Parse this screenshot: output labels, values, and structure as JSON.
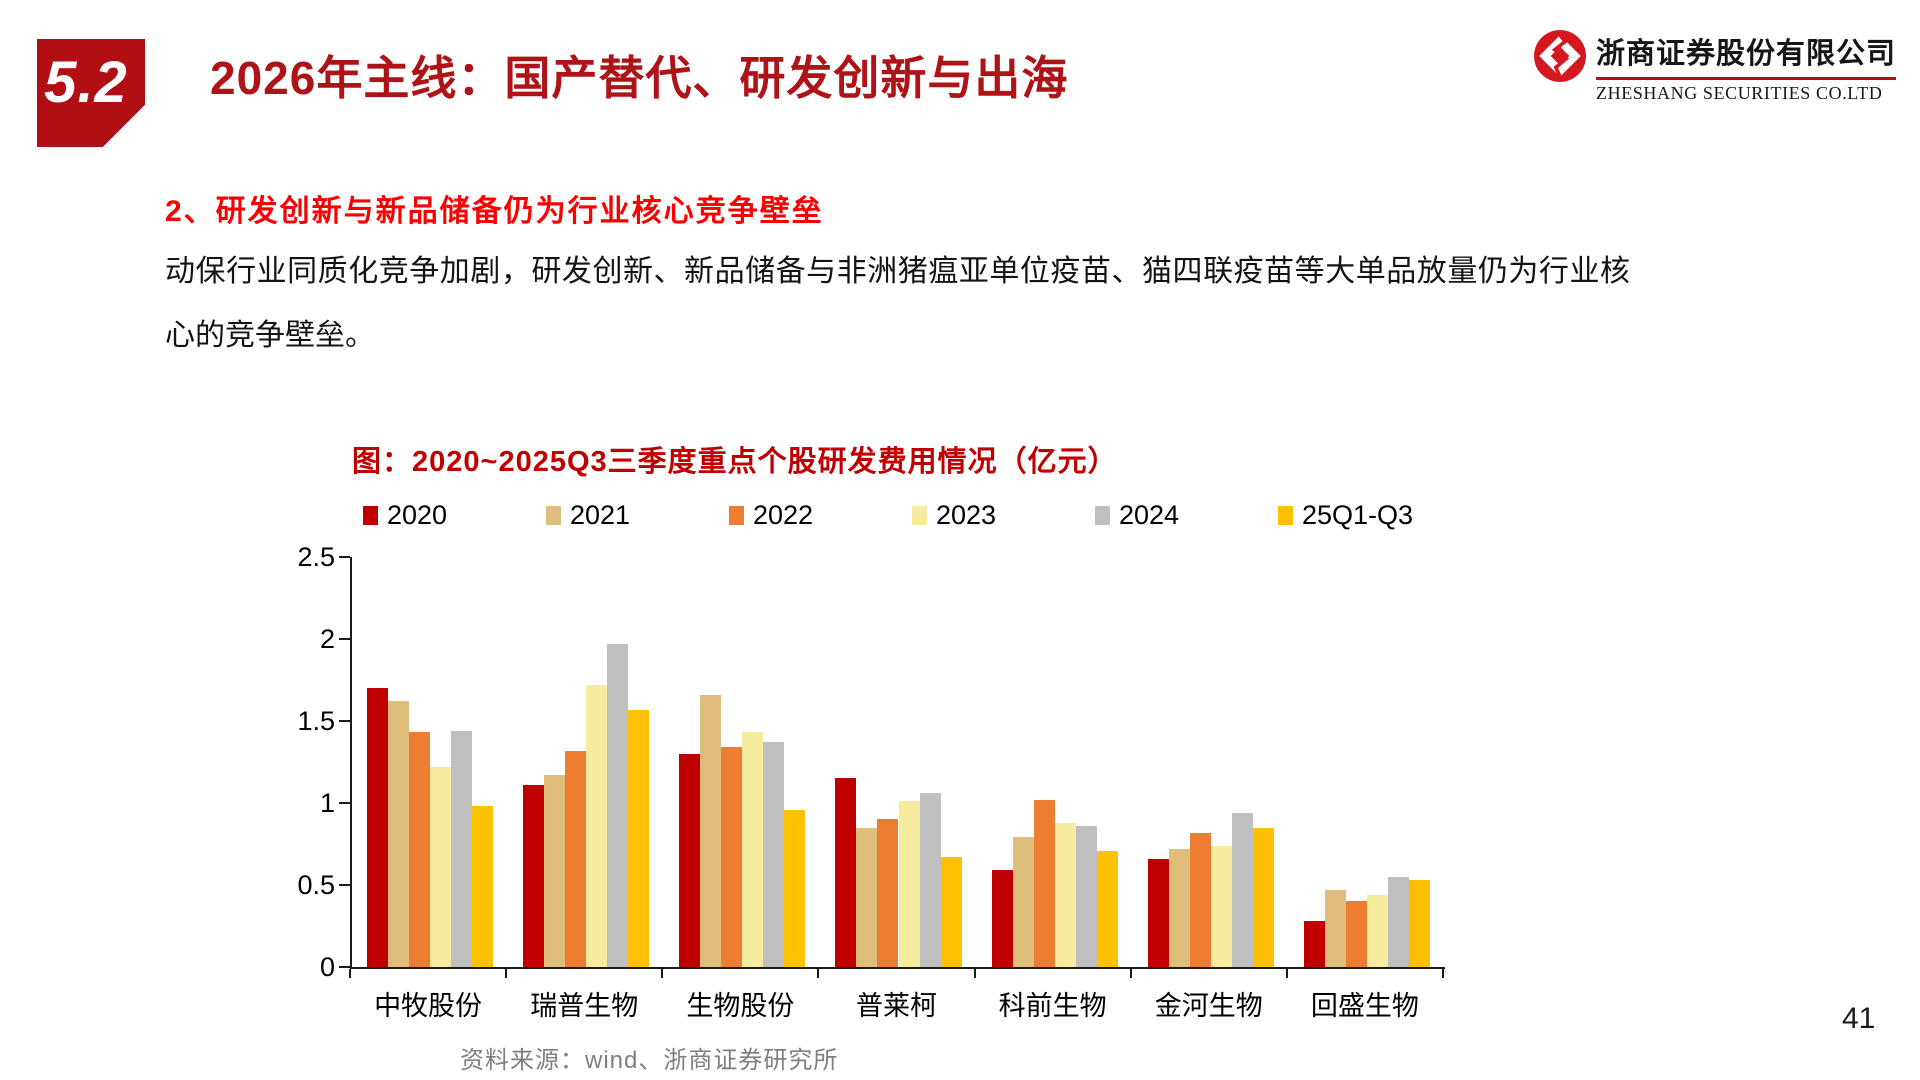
{
  "page": {
    "section_number": "5.2",
    "title": "2026年主线：国产替代、研发创新与出海",
    "page_number": "41"
  },
  "logo": {
    "company_cn": "浙商证券股份有限公司",
    "company_en": "ZHESHANG SECURITIES CO.LTD",
    "brand_color": "#D51820"
  },
  "content": {
    "heading": "2、研发创新与新品储备仍为行业核心竞争壁垒",
    "paragraph": "动保行业同质化竞争加剧，研发创新、新品储备与非洲猪瘟亚单位疫苗、猫四联疫苗等大单品放量仍为行业核心的竞争壁垒。"
  },
  "chart": {
    "title": "图：2020~2025Q3三季度重点个股研发费用情况（亿元）",
    "source": "资料来源：wind、浙商证券研究所"
  },
  "chart_data": {
    "type": "bar",
    "title": "图：2020~2025Q3三季度重点个股研发费用情况（亿元）",
    "categories": [
      "中牧股份",
      "瑞普生物",
      "生物股份",
      "普莱柯",
      "科前生物",
      "金河生物",
      "回盛生物"
    ],
    "series": [
      {
        "name": "2020",
        "color": "#C00000",
        "values": [
          1.7,
          1.11,
          1.3,
          1.15,
          0.59,
          0.66,
          0.28
        ]
      },
      {
        "name": "2021",
        "color": "#DFBE7B",
        "values": [
          1.62,
          1.17,
          1.66,
          0.85,
          0.79,
          0.72,
          0.47
        ]
      },
      {
        "name": "2022",
        "color": "#ED7D31",
        "values": [
          1.43,
          1.32,
          1.34,
          0.9,
          1.02,
          0.82,
          0.4
        ]
      },
      {
        "name": "2023",
        "color": "#F7EC9E",
        "values": [
          1.22,
          1.72,
          1.43,
          1.01,
          0.88,
          0.74,
          0.44
        ]
      },
      {
        "name": "2024",
        "color": "#BFBFBF",
        "values": [
          1.44,
          1.97,
          1.37,
          1.06,
          0.86,
          0.94,
          0.55
        ]
      },
      {
        "name": "25Q1-Q3",
        "color": "#FFC000",
        "values": [
          0.98,
          1.57,
          0.96,
          0.67,
          0.71,
          0.85,
          0.53
        ]
      }
    ],
    "xlabel": "",
    "ylabel": "",
    "ylim": [
      0,
      2.5
    ],
    "yticks": [
      0,
      0.5,
      1,
      1.5,
      2,
      2.5
    ],
    "grid": false,
    "legend_position": "top"
  }
}
